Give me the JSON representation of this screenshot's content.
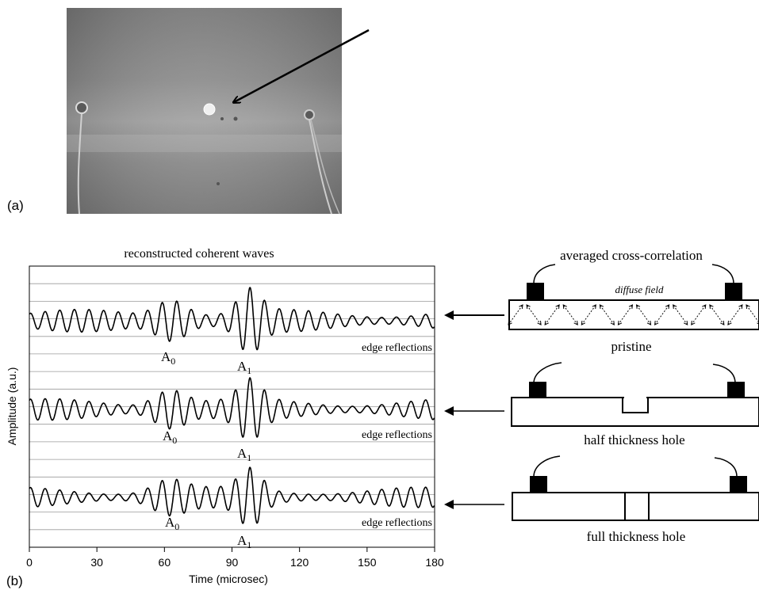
{
  "photo": {
    "label": "(a)"
  },
  "plot": {
    "label": "(b)",
    "title": "reconstructed coherent waves",
    "xlabel": "Time (microsec)",
    "ylabel": "Amplitude (a.u.)",
    "x_ticks": [
      "0",
      "30",
      "60",
      "90",
      "120",
      "150",
      "180"
    ],
    "traces": [
      {
        "a0": "A",
        "a0_sub": "0",
        "a1": "A",
        "a1_sub": "1",
        "note": "edge reflections"
      },
      {
        "a0": "A",
        "a0_sub": "0",
        "a1": "A",
        "a1_sub": "1",
        "note": "edge reflections"
      },
      {
        "a0": "A",
        "a0_sub": "0",
        "a1": "A",
        "a1_sub": "1",
        "note": "edge reflections"
      }
    ]
  },
  "chart_data": {
    "type": "line",
    "title": "reconstructed coherent waves",
    "xlabel": "Time (microsec)",
    "ylabel": "Amplitude (a.u.)",
    "xlim": [
      0,
      180
    ],
    "x_ticks": [
      0,
      30,
      60,
      90,
      120,
      150,
      180
    ],
    "wave_packets": [
      {
        "name": "A0",
        "center_us": 63,
        "width_us": 10
      },
      {
        "name": "A1",
        "center_us": 98,
        "width_us": 7
      }
    ],
    "carrier_period_us": 6.5,
    "grid": true
  },
  "schematics": [
    {
      "top_label": "averaged cross-correlation",
      "field_label": "diffuse field",
      "bottom_label": "pristine",
      "hole": "none"
    },
    {
      "top_label": "",
      "field_label": "",
      "bottom_label": "half thickness hole",
      "hole": "half"
    },
    {
      "top_label": "",
      "field_label": "",
      "bottom_label": "full thickness hole",
      "hole": "full"
    }
  ]
}
